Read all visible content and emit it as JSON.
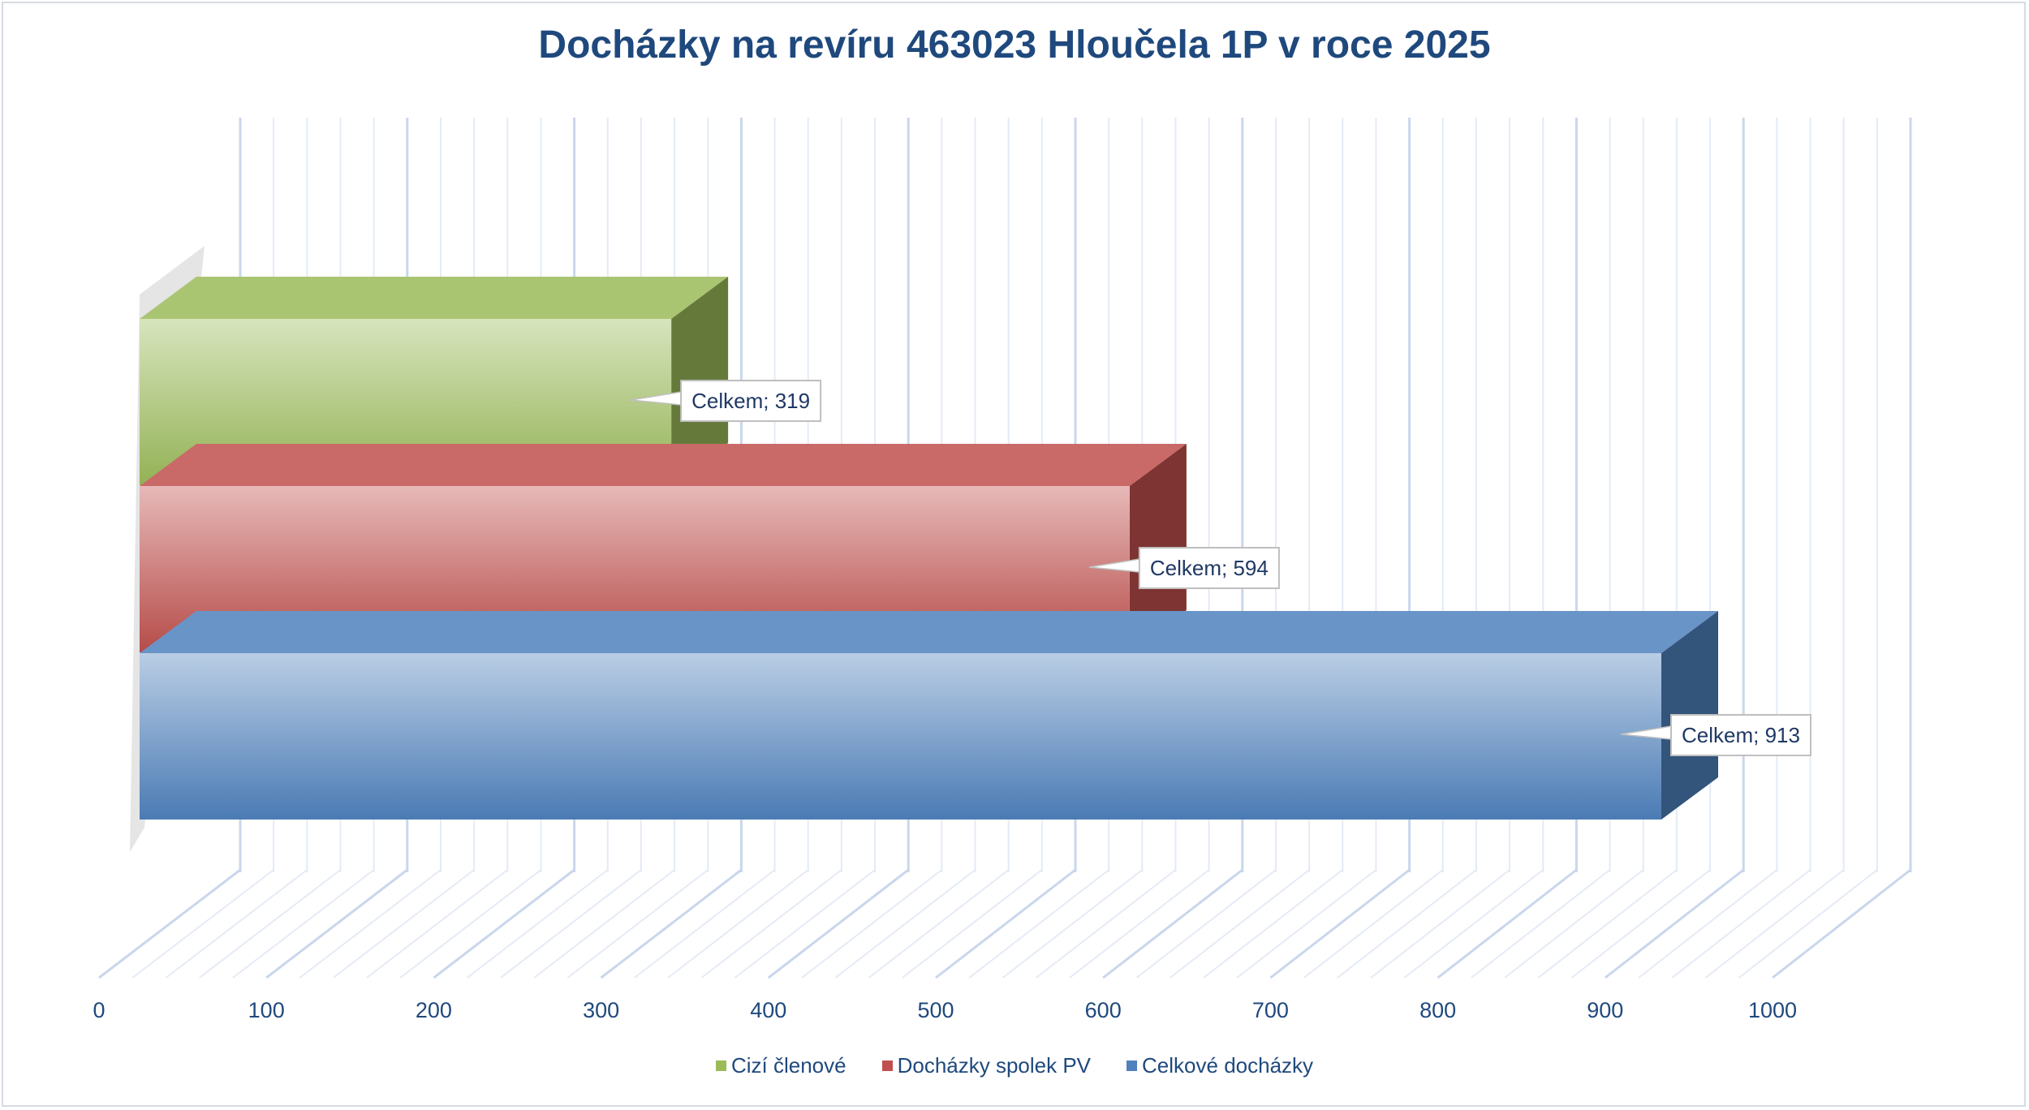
{
  "chart_data": {
    "type": "bar",
    "orientation": "horizontal",
    "style": "3d",
    "title": "Docházky na revíru 463023 Hloučela 1P v roce 2025",
    "xlim": [
      0,
      1000
    ],
    "x_ticks": [
      "0",
      "100",
      "200",
      "300",
      "400",
      "500",
      "600",
      "700",
      "800",
      "900",
      "1000"
    ],
    "grid": true,
    "legend_position": "bottom",
    "series": [
      {
        "name": "Celkové docházky",
        "values": [
          913
        ],
        "data_label": "Celkem; 913",
        "color": "#4f81bd"
      },
      {
        "name": "Docházky spolek PV",
        "values": [
          594
        ],
        "data_label": "Celkem; 594",
        "color": "#c0504d"
      },
      {
        "name": "Cizí členové",
        "values": [
          319
        ],
        "data_label": "Celkem; 319",
        "color": "#9bbb59"
      }
    ],
    "legend": [
      {
        "name": "Cizí členové",
        "color": "#9bbb59"
      },
      {
        "name": "Docházky spolek PV",
        "color": "#c0504d"
      },
      {
        "name": "Celkové docházky",
        "color": "#4f81bd"
      }
    ]
  }
}
